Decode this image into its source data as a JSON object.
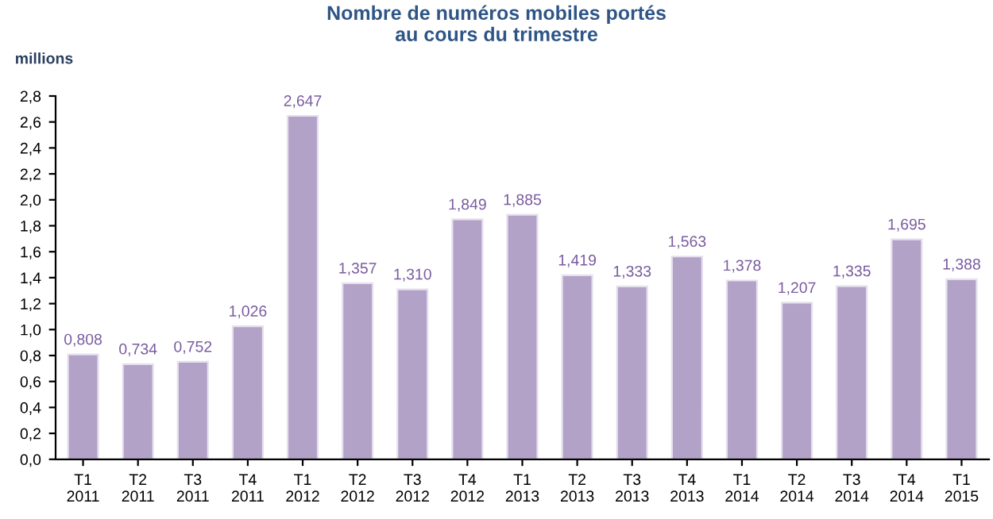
{
  "chart_data": {
    "type": "bar",
    "title": "Nombre de numéros mobiles portés\nau cours du trimestre",
    "ylabel": "millions",
    "categories": [
      "T1\n2011",
      "T2\n2011",
      "T3\n2011",
      "T4\n2011",
      "T1\n2012",
      "T2\n2012",
      "T3\n2012",
      "T4\n2012",
      "T1\n2013",
      "T2\n2013",
      "T3\n2013",
      "T4\n2013",
      "T1\n2014",
      "T2\n2014",
      "T3\n2014",
      "T4\n2014",
      "T1\n2015"
    ],
    "values": [
      0.808,
      0.734,
      0.752,
      1.026,
      2.647,
      1.357,
      1.31,
      1.849,
      1.885,
      1.419,
      1.333,
      1.563,
      1.378,
      1.207,
      1.335,
      1.695,
      1.388
    ],
    "value_labels": [
      "0,808",
      "0,734",
      "0,752",
      "1,026",
      "2,647",
      "1,357",
      "1,310",
      "1,849",
      "1,885",
      "1,419",
      "1,333",
      "1,563",
      "1,378",
      "1,207",
      "1,335",
      "1,695",
      "1,388"
    ],
    "color": "#b3a2c8",
    "ylim": [
      0,
      2.8
    ],
    "yticks": [
      {
        "value": 0,
        "label": "0,0"
      },
      {
        "value": 0.2,
        "label": "0,2"
      },
      {
        "value": 0.4,
        "label": "0,4"
      },
      {
        "value": 0.6,
        "label": "0,6"
      },
      {
        "value": 0.8,
        "label": "0,8"
      },
      {
        "value": 1.0,
        "label": "1,0"
      },
      {
        "value": 1.2,
        "label": "1,2"
      },
      {
        "value": 1.4,
        "label": "1,4"
      },
      {
        "value": 1.6,
        "label": "1,6"
      },
      {
        "value": 1.8,
        "label": "1,8"
      },
      {
        "value": 2.0,
        "label": "2,0"
      },
      {
        "value": 2.2,
        "label": "2,2"
      },
      {
        "value": 2.4,
        "label": "2,4"
      },
      {
        "value": 2.6,
        "label": "2,6"
      },
      {
        "value": 2.8,
        "label": "2,8"
      }
    ],
    "grid": false,
    "legend": false
  }
}
